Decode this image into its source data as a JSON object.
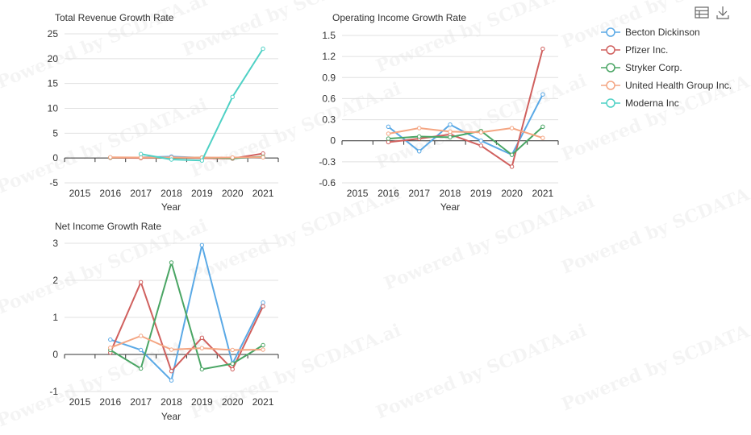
{
  "watermark": "Powered by SCDATA.ai",
  "toolbox": {
    "data_view_icon": "table-icon",
    "download_icon": "download-icon"
  },
  "legend": [
    {
      "name": "Becton Dickinson",
      "color": "#5aa9e6"
    },
    {
      "name": "Pfizer Inc.",
      "color": "#d0605e"
    },
    {
      "name": "Stryker Corp.",
      "color": "#4aa564"
    },
    {
      "name": "United Health Group Inc.",
      "color": "#f4a582"
    },
    {
      "name": "Moderna Inc",
      "color": "#4fd1c5"
    }
  ],
  "chart_data": [
    {
      "type": "line",
      "title": "Total Revenue Growth Rate",
      "xlabel": "Year",
      "ylabel": "",
      "categories": [
        "2015",
        "2016",
        "2017",
        "2018",
        "2019",
        "2020",
        "2021"
      ],
      "ylim": [
        -5,
        25
      ],
      "yticks": [
        -5,
        0,
        5,
        10,
        15,
        20,
        25
      ],
      "ytick_labels": [
        "-5",
        "0",
        "5",
        "10",
        "15",
        "20",
        "25"
      ],
      "grid": true,
      "series": [
        {
          "name": "Becton Dickinson",
          "values": [
            null,
            0.1,
            0.12,
            0.3,
            0.05,
            -0.05,
            0.2
          ]
        },
        {
          "name": "Pfizer Inc.",
          "values": [
            null,
            0.05,
            0.0,
            0.02,
            -0.02,
            -0.1,
            0.9
          ]
        },
        {
          "name": "Stryker Corp.",
          "values": [
            null,
            0.1,
            0.1,
            0.05,
            0.1,
            -0.05,
            0.25
          ]
        },
        {
          "name": "United Health Group Inc.",
          "values": [
            null,
            0.15,
            0.1,
            0.12,
            0.08,
            0.1,
            0.15
          ]
        },
        {
          "name": "Moderna Inc",
          "values": [
            null,
            null,
            0.8,
            -0.3,
            -0.5,
            12.3,
            22.0
          ]
        }
      ]
    },
    {
      "type": "line",
      "title": "Operating Income Growth Rate",
      "xlabel": "Year",
      "ylabel": "",
      "categories": [
        "2015",
        "2016",
        "2017",
        "2018",
        "2019",
        "2020",
        "2021"
      ],
      "ylim": [
        -0.6,
        1.5
      ],
      "yticks": [
        -0.6,
        -0.3,
        0,
        0.3,
        0.6,
        0.9,
        1.2,
        1.5
      ],
      "ytick_labels": [
        "-0.6",
        "-0.3",
        "0",
        "0.3",
        "0.6",
        "0.9",
        "1.2",
        "1.5"
      ],
      "grid": true,
      "series": [
        {
          "name": "Becton Dickinson",
          "values": [
            null,
            0.2,
            -0.15,
            0.23,
            0.0,
            -0.2,
            0.66
          ]
        },
        {
          "name": "Pfizer Inc.",
          "values": [
            null,
            -0.02,
            0.03,
            0.09,
            -0.07,
            -0.37,
            1.31
          ]
        },
        {
          "name": "Stryker Corp.",
          "values": [
            null,
            0.03,
            0.06,
            0.05,
            0.14,
            -0.2,
            0.2
          ]
        },
        {
          "name": "United Health Group Inc.",
          "values": [
            null,
            0.1,
            0.18,
            0.13,
            0.12,
            0.18,
            0.04
          ]
        },
        {
          "name": "Moderna Inc",
          "values": [
            null,
            null,
            null,
            null,
            null,
            null,
            null
          ]
        }
      ]
    },
    {
      "type": "line",
      "title": "Net Income Growth Rate",
      "xlabel": "Year",
      "ylabel": "",
      "categories": [
        "2015",
        "2016",
        "2017",
        "2018",
        "2019",
        "2020",
        "2021"
      ],
      "ylim": [
        -1,
        3
      ],
      "yticks": [
        -1,
        0,
        1,
        2,
        3
      ],
      "ytick_labels": [
        "-1",
        "0",
        "1",
        "2",
        "3"
      ],
      "grid": true,
      "series": [
        {
          "name": "Becton Dickinson",
          "values": [
            null,
            0.4,
            0.12,
            -0.7,
            2.95,
            -0.25,
            1.4
          ]
        },
        {
          "name": "Pfizer Inc.",
          "values": [
            null,
            0.05,
            1.95,
            -0.45,
            0.45,
            -0.4,
            1.3
          ]
        },
        {
          "name": "Stryker Corp.",
          "values": [
            null,
            0.12,
            -0.38,
            2.48,
            -0.4,
            -0.25,
            0.25
          ]
        },
        {
          "name": "United Health Group Inc.",
          "values": [
            null,
            0.18,
            0.5,
            0.13,
            0.17,
            0.12,
            0.13
          ]
        },
        {
          "name": "Moderna Inc",
          "values": [
            null,
            null,
            null,
            null,
            null,
            null,
            null
          ]
        }
      ]
    }
  ]
}
